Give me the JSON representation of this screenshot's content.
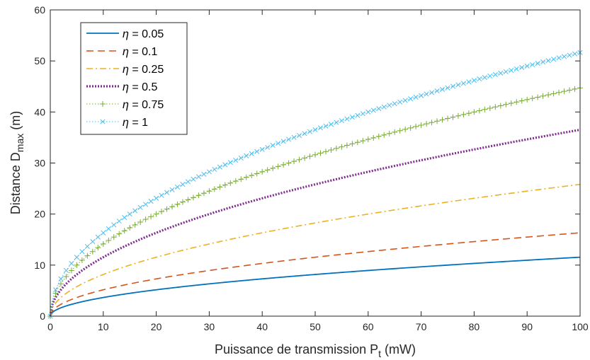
{
  "chart_data": {
    "type": "line",
    "xlabel": "Puissance de transmission P",
    "xlabel_sub": "t",
    "xlabel_unit": " (mW)",
    "ylabel": "Distance  D",
    "ylabel_sub": "max",
    "ylabel_unit": " (m)",
    "xlim": [
      0,
      100
    ],
    "ylim": [
      0,
      60
    ],
    "xticks": [
      "0",
      "10",
      "20",
      "30",
      "40",
      "50",
      "60",
      "70",
      "80",
      "90",
      "100"
    ],
    "yticks": [
      "0",
      "10",
      "20",
      "30",
      "40",
      "50",
      "60"
    ],
    "grid": false,
    "legend_position": "top-left",
    "model": "D = k * sqrt(Pt)",
    "series": [
      {
        "name": "η = 0.05",
        "greek": "η",
        "value_text": " = 0.05",
        "color": "#0072BD",
        "style": "solid",
        "marker": "none",
        "k": 1.155,
        "values_at_ticks": [
          0,
          3.65,
          5.17,
          6.33,
          7.31,
          8.17,
          8.95,
          9.66,
          10.33,
          10.96,
          11.55
        ]
      },
      {
        "name": "η = 0.1",
        "greek": "η",
        "value_text": " = 0.1",
        "color": "#D95319",
        "style": "dashed",
        "marker": "none",
        "k": 1.633,
        "values_at_ticks": [
          0,
          5.16,
          7.3,
          8.94,
          10.33,
          11.55,
          12.65,
          13.66,
          14.6,
          15.49,
          16.33
        ]
      },
      {
        "name": "η = 0.25",
        "greek": "η",
        "value_text": " = 0.25",
        "color": "#EDB120",
        "style": "dashdot",
        "marker": "none",
        "k": 2.582,
        "values_at_ticks": [
          0,
          8.16,
          11.55,
          14.14,
          16.33,
          18.26,
          20.0,
          21.6,
          23.09,
          24.49,
          25.82
        ]
      },
      {
        "name": "η = 0.5",
        "greek": "η",
        "value_text": " = 0.5",
        "color": "#7E2F8E",
        "style": "dotted",
        "marker": "none",
        "k": 3.651,
        "values_at_ticks": [
          0,
          11.55,
          16.33,
          20.0,
          23.09,
          25.82,
          28.28,
          30.55,
          32.66,
          34.64,
          36.51
        ]
      },
      {
        "name": "η = 0.75",
        "greek": "η",
        "value_text": " = 0.75",
        "color": "#77AC30",
        "style": "dotted",
        "marker": "plus",
        "k": 4.472,
        "values_at_ticks": [
          0,
          14.14,
          20.0,
          24.49,
          28.28,
          31.62,
          34.64,
          37.42,
          40.0,
          42.43,
          44.72
        ]
      },
      {
        "name": "η = 1",
        "greek": "η",
        "value_text": " = 1",
        "color": "#4DBEEE",
        "style": "dotted",
        "marker": "x",
        "k": 5.164,
        "values_at_ticks": [
          0,
          16.33,
          23.09,
          28.28,
          32.66,
          36.51,
          40.0,
          43.2,
          46.19,
          48.99,
          51.64
        ]
      }
    ]
  }
}
